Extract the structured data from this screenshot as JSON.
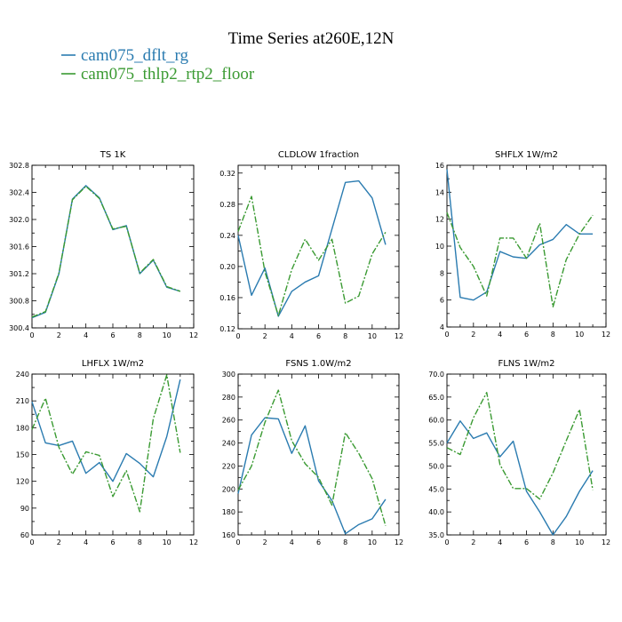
{
  "figure": {
    "title": "Time Series at260E,12N",
    "legend": [
      {
        "label": "cam075_dflt_rg",
        "color": "#2a7bb0"
      },
      {
        "label": "cam075_thlp2_rtp2_floor",
        "color": "#3a9a32"
      }
    ]
  },
  "chart_data": [
    {
      "type": "line",
      "title": "TS   1K",
      "xlim": [
        0,
        12
      ],
      "ylim": [
        300.4,
        302.8
      ],
      "xticks": [
        0,
        2,
        4,
        6,
        8,
        10,
        12
      ],
      "xtick_labels": [
        "0",
        "2",
        "4",
        "6",
        "8",
        "10",
        "12"
      ],
      "yticks": [
        300.4,
        300.8,
        301.2,
        301.6,
        302.0,
        302.4,
        302.8
      ],
      "ytick_labels": [
        "300.4",
        "300.8",
        "301.2",
        "301.6",
        "302.0",
        "302.4",
        "302.8"
      ],
      "x": [
        0,
        1,
        2,
        3,
        4,
        5,
        6,
        7,
        8,
        9,
        10,
        11
      ],
      "series": [
        {
          "name": "cam075_dflt_rg",
          "color": "#2a7bb0",
          "dash": "solid",
          "values": [
            300.55,
            300.63,
            301.2,
            302.3,
            302.5,
            302.32,
            301.85,
            301.91,
            301.2,
            301.4,
            301.0,
            300.94
          ]
        },
        {
          "name": "cam075_thlp2_rtp2_floor",
          "color": "#3a9a32",
          "dash": "dashdot",
          "values": [
            300.56,
            300.64,
            301.21,
            302.29,
            302.49,
            302.31,
            301.86,
            301.9,
            301.21,
            301.41,
            301.01,
            300.94
          ]
        }
      ]
    },
    {
      "type": "line",
      "title": "CLDLOW   1fraction",
      "xlim": [
        0,
        12
      ],
      "ylim": [
        0.12,
        0.33
      ],
      "xticks": [
        0,
        2,
        4,
        6,
        8,
        10,
        12
      ],
      "xtick_labels": [
        "0",
        "2",
        "4",
        "6",
        "8",
        "10",
        "12"
      ],
      "yticks": [
        0.12,
        0.16,
        0.2,
        0.24,
        0.28,
        0.32
      ],
      "ytick_labels": [
        "0.12",
        "0.16",
        "0.20",
        "0.24",
        "0.28",
        "0.32"
      ],
      "x": [
        0,
        1,
        2,
        3,
        4,
        5,
        6,
        7,
        8,
        9,
        10,
        11
      ],
      "series": [
        {
          "name": "cam075_dflt_rg",
          "color": "#2a7bb0",
          "dash": "solid",
          "values": [
            0.24,
            0.163,
            0.198,
            0.136,
            0.168,
            0.18,
            0.188,
            0.248,
            0.308,
            0.31,
            0.288,
            0.228
          ]
        },
        {
          "name": "cam075_thlp2_rtp2_floor",
          "color": "#3a9a32",
          "dash": "dashdot",
          "values": [
            0.245,
            0.29,
            0.193,
            0.137,
            0.196,
            0.235,
            0.208,
            0.235,
            0.153,
            0.162,
            0.216,
            0.244
          ]
        }
      ]
    },
    {
      "type": "line",
      "title": "SHFLX   1W/m2",
      "xlim": [
        0,
        12
      ],
      "ylim": [
        4,
        16
      ],
      "xticks": [
        0,
        2,
        4,
        6,
        8,
        10,
        12
      ],
      "xtick_labels": [
        "0",
        "2",
        "4",
        "6",
        "8",
        "10",
        "12"
      ],
      "yticks": [
        4,
        6,
        8,
        10,
        12,
        14,
        16
      ],
      "ytick_labels": [
        "4",
        "6",
        "8",
        "10",
        "12",
        "14",
        "16"
      ],
      "x": [
        0,
        1,
        2,
        3,
        4,
        5,
        6,
        7,
        8,
        9,
        10,
        11
      ],
      "series": [
        {
          "name": "cam075_dflt_rg",
          "color": "#2a7bb0",
          "dash": "solid",
          "values": [
            15.7,
            6.2,
            6.0,
            6.6,
            9.6,
            9.2,
            9.1,
            10.1,
            10.5,
            11.6,
            10.9,
            10.9
          ]
        },
        {
          "name": "cam075_thlp2_rtp2_floor",
          "color": "#3a9a32",
          "dash": "dashdot",
          "values": [
            12.5,
            9.9,
            8.5,
            6.3,
            10.6,
            10.6,
            9.1,
            11.7,
            5.5,
            9.0,
            10.9,
            12.3
          ]
        }
      ]
    },
    {
      "type": "line",
      "title": "LHFLX   1W/m2",
      "xlim": [
        0,
        12
      ],
      "ylim": [
        60,
        240
      ],
      "xticks": [
        0,
        2,
        4,
        6,
        8,
        10,
        12
      ],
      "xtick_labels": [
        "0",
        "2",
        "4",
        "6",
        "8",
        "10",
        "12"
      ],
      "yticks": [
        60,
        90,
        120,
        150,
        180,
        210,
        240
      ],
      "ytick_labels": [
        "60",
        "90",
        "120",
        "150",
        "180",
        "210",
        "240"
      ],
      "x": [
        0,
        1,
        2,
        3,
        4,
        5,
        6,
        7,
        8,
        9,
        10,
        11
      ],
      "series": [
        {
          "name": "cam075_dflt_rg",
          "color": "#2a7bb0",
          "dash": "solid",
          "values": [
            209,
            163,
            160,
            165,
            129,
            141,
            120,
            151,
            140,
            125,
            170,
            234
          ]
        },
        {
          "name": "cam075_thlp2_rtp2_floor",
          "color": "#3a9a32",
          "dash": "dashdot",
          "values": [
            178,
            213,
            158,
            128,
            153,
            149,
            103,
            132,
            86,
            190,
            239,
            152
          ]
        }
      ]
    },
    {
      "type": "line",
      "title": "FSNS   1.0W/m2",
      "xlim": [
        0,
        12
      ],
      "ylim": [
        160,
        300
      ],
      "xticks": [
        0,
        2,
        4,
        6,
        8,
        10,
        12
      ],
      "xtick_labels": [
        "0",
        "2",
        "4",
        "6",
        "8",
        "10",
        "12"
      ],
      "yticks": [
        160,
        180,
        200,
        220,
        240,
        260,
        280,
        300
      ],
      "ytick_labels": [
        "160",
        "180",
        "200",
        "220",
        "240",
        "260",
        "280",
        "300"
      ],
      "x": [
        0,
        1,
        2,
        3,
        4,
        5,
        6,
        7,
        8,
        9,
        10,
        11
      ],
      "series": [
        {
          "name": "cam075_dflt_rg",
          "color": "#2a7bb0",
          "dash": "solid",
          "values": [
            196,
            247,
            262,
            261,
            231,
            255,
            207,
            190,
            161,
            169,
            174,
            191
          ]
        },
        {
          "name": "cam075_thlp2_rtp2_floor",
          "color": "#3a9a32",
          "dash": "dashdot",
          "values": [
            199,
            220,
            258,
            286,
            242,
            222,
            210,
            186,
            249,
            231,
            209,
            168
          ]
        }
      ]
    },
    {
      "type": "line",
      "title": "FLNS   1W/m2",
      "xlim": [
        0,
        12
      ],
      "ylim": [
        35,
        70
      ],
      "xticks": [
        0,
        2,
        4,
        6,
        8,
        10,
        12
      ],
      "xtick_labels": [
        "0",
        "2",
        "4",
        "6",
        "8",
        "10",
        "12"
      ],
      "yticks": [
        35,
        40,
        45,
        50,
        55,
        60,
        65,
        70
      ],
      "ytick_labels": [
        "35.0",
        "40.0",
        "45.0",
        "50.0",
        "55.0",
        "60.0",
        "65.0",
        "70.0"
      ],
      "x": [
        0,
        1,
        2,
        3,
        4,
        5,
        6,
        7,
        8,
        9,
        10,
        11
      ],
      "series": [
        {
          "name": "cam075_dflt_rg",
          "color": "#2a7bb0",
          "dash": "solid",
          "values": [
            55.0,
            59.8,
            56.0,
            57.2,
            52.0,
            55.4,
            44.5,
            40.0,
            35.0,
            39.0,
            44.5,
            49.0
          ]
        },
        {
          "name": "cam075_thlp2_rtp2_floor",
          "color": "#3a9a32",
          "dash": "dashdot",
          "values": [
            54.0,
            52.5,
            60.5,
            66.0,
            50.3,
            45.1,
            45.1,
            42.8,
            48.5,
            55.5,
            62.3,
            44.8
          ]
        }
      ]
    }
  ]
}
